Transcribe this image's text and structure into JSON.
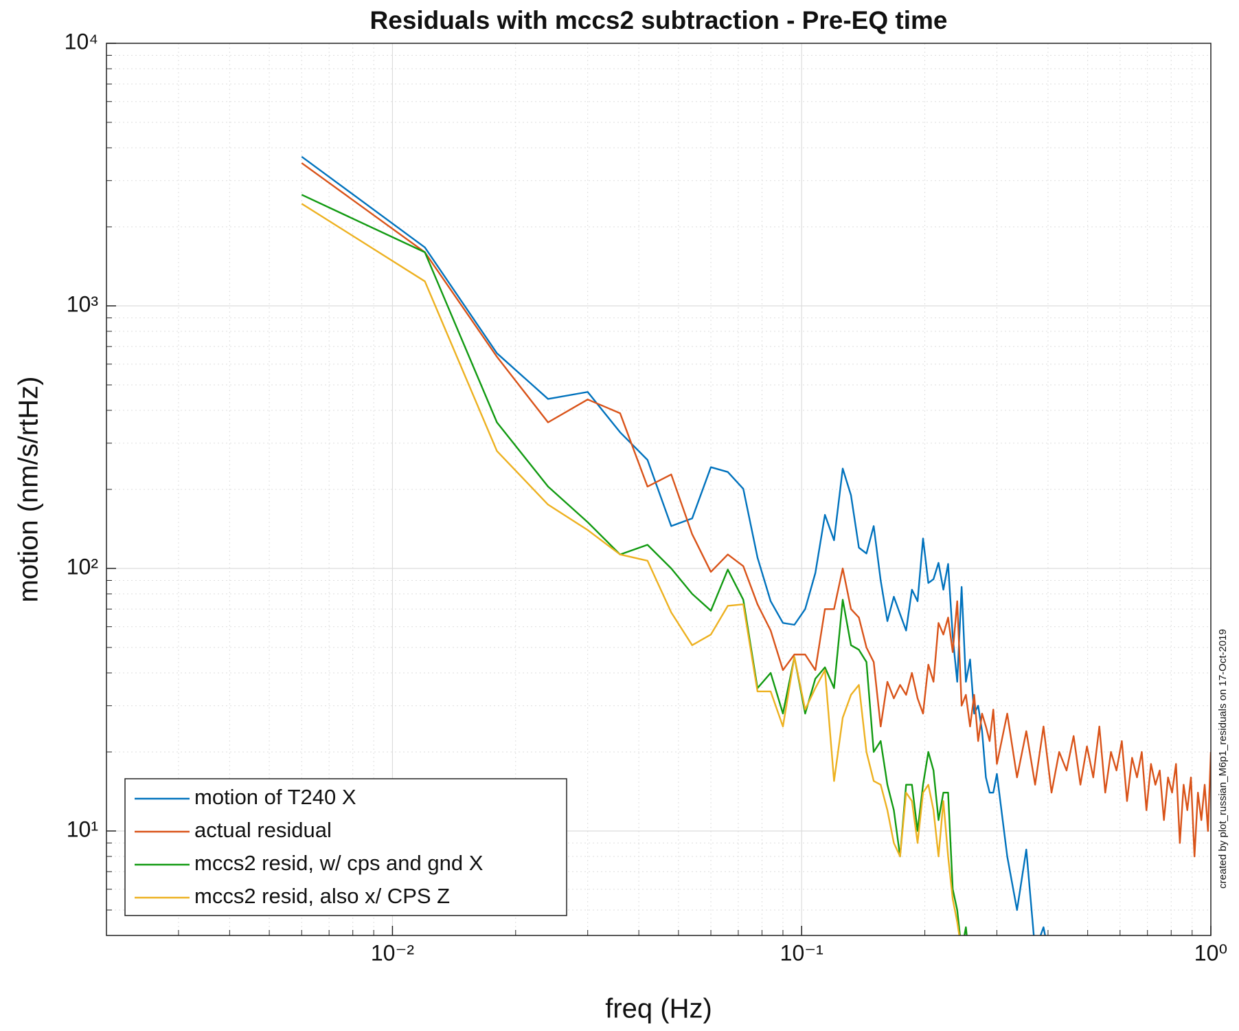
{
  "chart_data": {
    "type": "line",
    "title": "Residuals with mccs2 subtraction - Pre-EQ time",
    "x_label": "freq (Hz)",
    "y_label": "motion (nm/s/rtHz)",
    "annotation": "created by plot_russian_M6p1_residuals on 17-Oct-2019",
    "log_x": true,
    "log_y": true,
    "grid": true,
    "minor_grid": true,
    "legend": "lower left",
    "xlim": [
      0.002,
      1
    ],
    "ylim": [
      4,
      10000
    ],
    "xticks": [
      {
        "value": 0.01,
        "label": "10⁻²"
      },
      {
        "value": 0.1,
        "label": "10⁻¹"
      },
      {
        "value": 1,
        "label": "10⁰"
      }
    ],
    "yticks": [
      {
        "value": 10,
        "label": "10¹"
      },
      {
        "value": 100,
        "label": "10²"
      },
      {
        "value": 1000,
        "label": "10³"
      },
      {
        "value": 10000,
        "label": "10⁴"
      }
    ],
    "xminorticks": [
      0.003,
      0.004,
      0.005,
      0.006,
      0.007,
      0.008,
      0.009,
      0.02,
      0.03,
      0.04,
      0.05,
      0.06,
      0.07,
      0.08,
      0.09,
      0.2,
      0.3,
      0.4,
      0.5,
      0.6,
      0.7,
      0.8,
      0.9
    ],
    "yminorticks": [
      5,
      6,
      7,
      8,
      9,
      20,
      30,
      40,
      50,
      60,
      70,
      80,
      90,
      200,
      300,
      400,
      500,
      600,
      700,
      800,
      900,
      2000,
      3000,
      4000,
      5000,
      6000,
      7000,
      8000,
      9000
    ],
    "x": [
      0.006,
      0.012,
      0.018,
      0.024,
      0.03,
      0.036,
      0.042,
      0.048,
      0.054,
      0.06,
      0.066,
      0.072,
      0.078,
      0.084,
      0.09,
      0.096,
      0.102,
      0.108,
      0.114,
      0.12,
      0.126,
      0.132,
      0.138,
      0.144,
      0.15,
      0.156,
      0.162,
      0.168,
      0.174,
      0.18,
      0.186,
      0.192,
      0.198,
      0.204,
      0.21,
      0.216,
      0.222,
      0.228,
      0.234,
      0.24,
      0.246,
      0.252,
      0.258,
      0.264,
      0.27,
      0.276,
      0.282,
      0.288,
      0.294,
      0.3,
      0.318,
      0.336,
      0.354,
      0.372,
      0.39,
      0.408,
      0.426,
      0.444,
      0.462,
      0.48,
      0.498,
      0.516,
      0.534,
      0.552,
      0.57,
      0.588,
      0.606,
      0.624,
      0.642,
      0.66,
      0.678,
      0.696,
      0.714,
      0.732,
      0.75,
      0.768,
      0.786,
      0.804,
      0.822,
      0.84,
      0.858,
      0.876,
      0.894,
      0.912,
      0.93,
      0.948,
      0.966,
      0.984,
      1.0
    ],
    "series": [
      {
        "name": "motion of T240 X",
        "color": "#0072bd",
        "values": [
          3700,
          1670,
          660,
          442,
          470,
          330,
          259,
          145,
          155,
          243,
          233,
          201,
          110,
          75,
          62,
          61,
          70,
          96,
          160,
          128,
          240,
          190,
          120,
          114,
          145,
          90,
          63,
          78,
          67,
          58,
          83,
          75,
          130,
          88,
          91,
          105,
          83,
          104,
          55,
          37,
          85,
          37,
          45,
          28,
          30,
          24,
          16,
          14,
          14,
          16.5,
          8,
          5,
          8.5,
          3.5,
          4.3,
          3,
          null,
          null,
          null,
          null,
          null,
          null,
          null,
          null,
          null,
          null,
          null,
          null,
          null,
          null,
          null,
          null,
          null,
          null,
          null,
          null,
          null,
          null,
          null,
          null,
          null,
          null,
          null,
          null,
          null,
          null,
          null,
          null,
          null
        ]
      },
      {
        "name": "actual residual",
        "color": "#d95319",
        "values": [
          3500,
          1600,
          640,
          360,
          440,
          390,
          205,
          228,
          135,
          97,
          113,
          102,
          73,
          58,
          41,
          47,
          47,
          41,
          70,
          70,
          100,
          70,
          65,
          50,
          44,
          25,
          37,
          32,
          36,
          33,
          40,
          32,
          28,
          43,
          37,
          62,
          56,
          65,
          48,
          75,
          30,
          33,
          25,
          33,
          22,
          28,
          25,
          22,
          29,
          18,
          28,
          16,
          24,
          15,
          25,
          14,
          20,
          17,
          23,
          15,
          21,
          16,
          25,
          14,
          20,
          17,
          22,
          13,
          19,
          16,
          20,
          12,
          18,
          15,
          17,
          11,
          16,
          14,
          18,
          9,
          15,
          12,
          16,
          8,
          14,
          11,
          15,
          10,
          20
        ]
      },
      {
        "name": "mccs2 resid, w/ cps and gnd X",
        "color": "#119a11",
        "values": [
          2650,
          1600,
          360,
          205,
          150,
          113,
          123,
          100,
          80,
          69,
          99,
          76,
          35,
          40,
          28,
          46,
          28,
          38,
          42,
          35,
          76,
          51,
          49,
          44,
          20,
          22,
          15,
          12,
          8,
          15,
          15,
          10,
          15,
          20,
          17,
          11,
          14,
          14,
          6,
          5,
          3.5,
          4.3,
          3,
          null,
          null,
          null,
          null,
          null,
          null,
          null,
          null,
          null,
          null,
          null,
          null,
          null,
          null,
          null,
          null,
          null,
          null,
          null,
          null,
          null,
          null,
          null,
          null,
          null,
          null,
          null,
          null,
          null,
          null,
          null,
          null,
          null,
          null,
          null,
          null,
          null,
          null,
          null,
          null,
          null,
          null,
          null,
          null,
          null,
          null
        ]
      },
      {
        "name": "mccs2 resid, also x/ CPS Z",
        "color": "#edb120",
        "values": [
          2450,
          1240,
          280,
          175,
          140,
          113,
          107,
          68,
          51,
          56,
          72,
          73,
          34,
          34,
          25,
          46,
          29,
          35,
          41,
          15.5,
          27,
          33,
          36,
          20,
          15.5,
          15,
          12,
          9,
          8,
          14,
          13,
          9,
          14,
          15,
          12,
          8,
          13,
          8,
          5.5,
          4.5,
          3.5,
          3,
          null,
          null,
          null,
          null,
          null,
          null,
          null,
          null,
          null,
          null,
          null,
          null,
          null,
          null,
          null,
          null,
          null,
          null,
          null,
          null,
          null,
          null,
          null,
          null,
          null,
          null,
          null,
          null,
          null,
          null,
          null,
          null,
          null,
          null,
          null,
          null,
          null,
          null,
          null,
          null,
          null,
          null,
          null,
          null,
          null,
          null,
          null
        ]
      }
    ]
  }
}
